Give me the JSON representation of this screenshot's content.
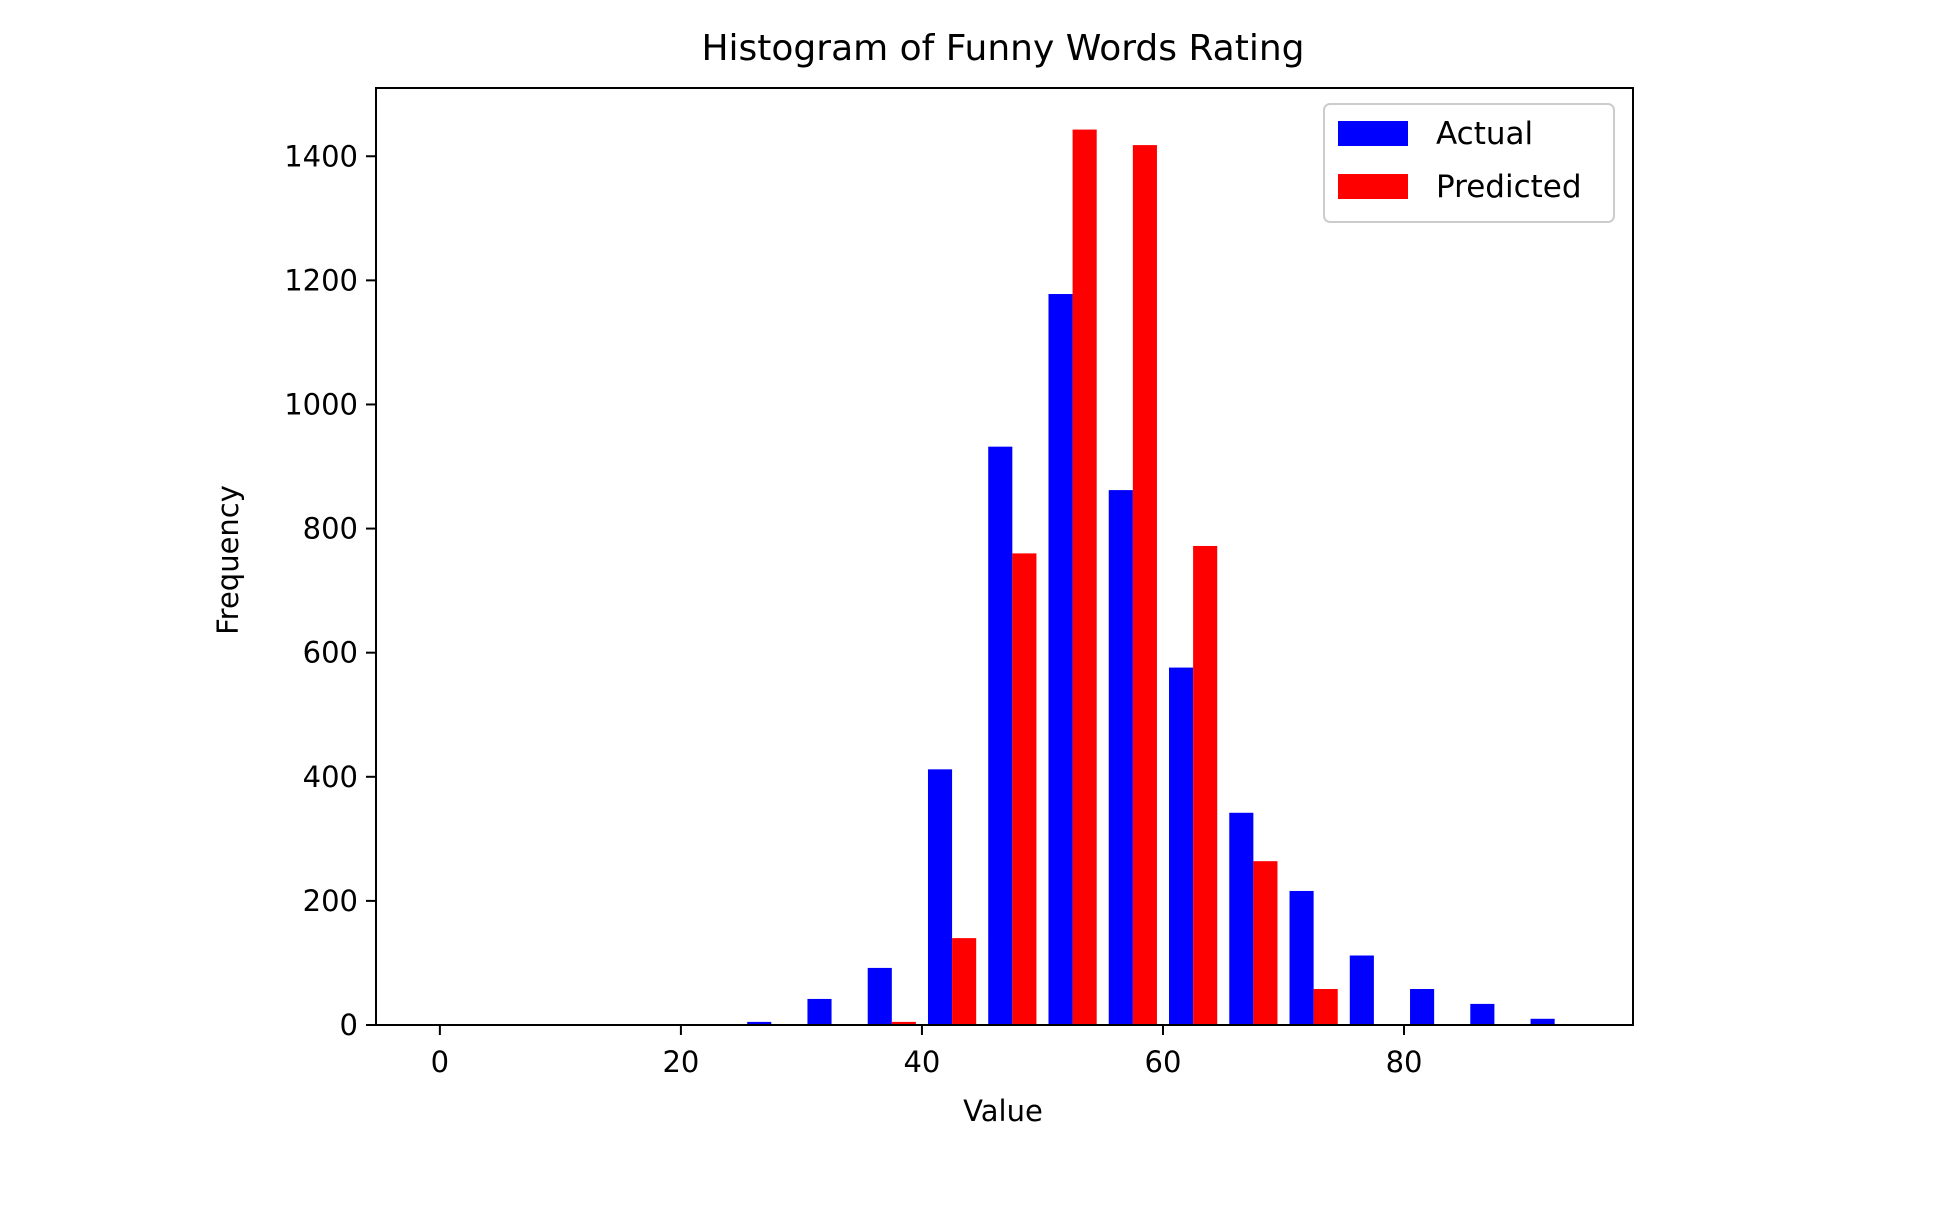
{
  "chart_data": {
    "type": "bar",
    "title": "Histogram of Funny Words Rating",
    "xlabel": "Value",
    "ylabel": "Frequency",
    "xlim": [
      -5.3,
      99
    ],
    "ylim": [
      0,
      1510
    ],
    "xticks": [
      0,
      20,
      40,
      60,
      80
    ],
    "yticks": [
      0,
      200,
      400,
      600,
      800,
      1000,
      1200,
      1400
    ],
    "bin_edges": [
      0,
      5,
      10,
      15,
      20,
      25,
      30,
      35,
      40,
      45,
      50,
      55,
      60,
      65,
      70,
      75,
      80,
      85,
      90,
      95
    ],
    "series": [
      {
        "name": "Actual",
        "color": "#0000ff",
        "values": [
          0,
          0,
          0,
          0,
          0,
          5,
          42,
          92,
          412,
          932,
          1178,
          862,
          576,
          342,
          216,
          112,
          58,
          34,
          10
        ]
      },
      {
        "name": "Predicted",
        "color": "#ff0000",
        "values": [
          0,
          0,
          0,
          0,
          0,
          0,
          0,
          5,
          140,
          760,
          1443,
          1418,
          772,
          264,
          58,
          0,
          0,
          0,
          0
        ]
      }
    ],
    "legend_position": "top-right",
    "grid": false
  }
}
